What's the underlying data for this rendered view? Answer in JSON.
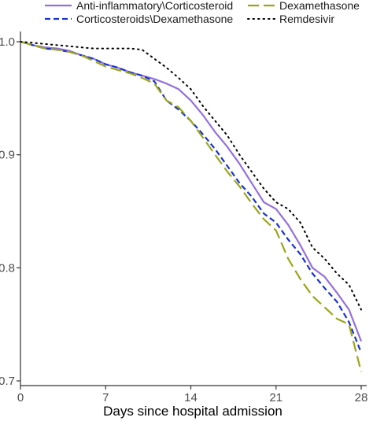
{
  "chart_data": {
    "type": "line",
    "xlabel": "Days since hospital admission",
    "ylabel": "",
    "xlim": [
      0,
      28
    ],
    "ylim": [
      0.7,
      1.0
    ],
    "x_ticks": [
      0,
      7,
      14,
      21,
      28
    ],
    "x_tick_labels": [
      "0",
      "7",
      "14",
      "21",
      "28"
    ],
    "y_ticks": [
      0.7,
      0.8,
      0.9,
      1.0
    ],
    "y_tick_labels": [
      "0.7",
      "0.8",
      "0.9",
      "1.0"
    ],
    "grid": false,
    "legend_position": "top",
    "series": [
      {
        "name": "Anti-inflammatory\\Corticosteroid",
        "color": "#9370db",
        "dash": "solid",
        "x": [
          0,
          1,
          2,
          3,
          4,
          5,
          6,
          7,
          8,
          9,
          10,
          11,
          12,
          13,
          14,
          15,
          16,
          17,
          18,
          19,
          20,
          21,
          22,
          23,
          24,
          25,
          26,
          27,
          28
        ],
        "y": [
          1.0,
          0.997,
          0.995,
          0.994,
          0.992,
          0.988,
          0.985,
          0.98,
          0.977,
          0.973,
          0.97,
          0.967,
          0.963,
          0.958,
          0.948,
          0.935,
          0.92,
          0.907,
          0.892,
          0.875,
          0.858,
          0.852,
          0.838,
          0.82,
          0.8,
          0.792,
          0.778,
          0.763,
          0.735
        ]
      },
      {
        "name": "Corticosteroids\\Dexamethasone",
        "color": "#1a33cc",
        "dash": "dashed",
        "x": [
          0,
          1,
          2,
          3,
          4,
          5,
          6,
          7,
          8,
          9,
          10,
          11,
          12,
          13,
          14,
          15,
          16,
          17,
          18,
          19,
          20,
          21,
          22,
          23,
          24,
          25,
          26,
          27,
          28
        ],
        "y": [
          1.0,
          0.997,
          0.994,
          0.993,
          0.991,
          0.988,
          0.985,
          0.98,
          0.977,
          0.973,
          0.97,
          0.965,
          0.948,
          0.94,
          0.93,
          0.918,
          0.905,
          0.89,
          0.875,
          0.863,
          0.848,
          0.84,
          0.825,
          0.812,
          0.795,
          0.782,
          0.77,
          0.752,
          0.725
        ]
      },
      {
        "name": "Dexamethasone",
        "color": "#9aa61a",
        "dash": "longdash",
        "x": [
          0,
          1,
          2,
          3,
          4,
          5,
          6,
          7,
          8,
          9,
          10,
          11,
          12,
          13,
          14,
          15,
          16,
          17,
          18,
          19,
          20,
          21,
          22,
          23,
          24,
          25,
          26,
          27,
          28
        ],
        "y": [
          1.0,
          0.997,
          0.994,
          0.993,
          0.991,
          0.988,
          0.983,
          0.978,
          0.975,
          0.972,
          0.968,
          0.963,
          0.948,
          0.942,
          0.93,
          0.915,
          0.9,
          0.885,
          0.872,
          0.857,
          0.843,
          0.833,
          0.808,
          0.79,
          0.775,
          0.765,
          0.755,
          0.75,
          0.708
        ]
      },
      {
        "name": "Remdesivir",
        "color": "#000000",
        "dash": "dotted",
        "x": [
          0,
          1,
          2,
          3,
          4,
          5,
          6,
          7,
          8,
          9,
          10,
          11,
          12,
          13,
          14,
          15,
          16,
          17,
          18,
          19,
          20,
          21,
          22,
          23,
          24,
          25,
          26,
          27,
          28
        ],
        "y": [
          1.0,
          0.999,
          0.998,
          0.997,
          0.996,
          0.995,
          0.994,
          0.994,
          0.994,
          0.994,
          0.993,
          0.985,
          0.977,
          0.968,
          0.958,
          0.943,
          0.93,
          0.917,
          0.9,
          0.885,
          0.87,
          0.858,
          0.852,
          0.84,
          0.818,
          0.808,
          0.795,
          0.785,
          0.763
        ]
      }
    ]
  }
}
